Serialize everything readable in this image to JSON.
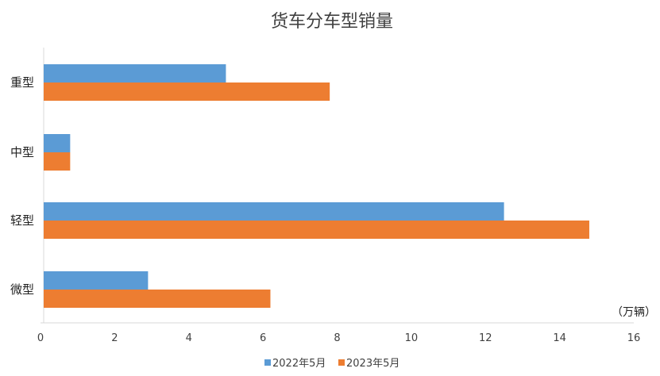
{
  "chart_data": {
    "type": "bar",
    "orientation": "horizontal",
    "title": "货车分车型销量",
    "unit_label": "（万辆）",
    "categories": [
      "重型",
      "中型",
      "轻型",
      "微型"
    ],
    "series": [
      {
        "name": "2022年5月",
        "color": "#5B9BD5",
        "values": [
          5.0,
          0.8,
          12.5,
          2.9
        ]
      },
      {
        "name": "2023年5月",
        "color": "#ED7D31",
        "values": [
          7.8,
          0.8,
          14.8,
          6.2
        ]
      }
    ],
    "xlim": [
      0,
      16
    ],
    "ticks": [
      "0",
      "2",
      "4",
      "6",
      "8",
      "10",
      "12",
      "14",
      "16"
    ],
    "grid": false,
    "legend_position": "bottom"
  }
}
